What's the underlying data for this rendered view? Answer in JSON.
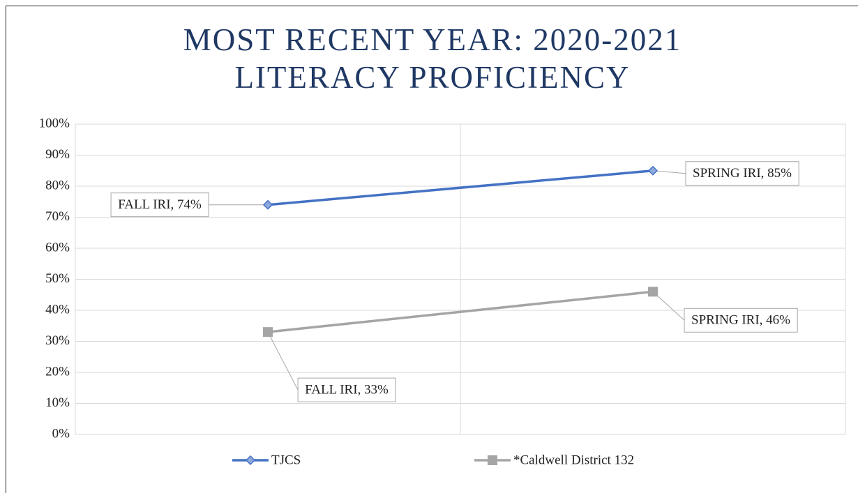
{
  "chart_data": {
    "type": "line",
    "title": "MOST RECENT YEAR: 2020-2021 LITERACY PROFICIENCY",
    "categories": [
      null,
      null
    ],
    "series": [
      {
        "name": "TJCS",
        "color": "#4472c4",
        "marker": "diamond",
        "values": [
          74,
          85
        ],
        "value_labels": [
          "FALL IRI, 74%",
          "SPRING IRI, 85%"
        ]
      },
      {
        "name": "*Caldwell District 132",
        "color": "#a5a5a5",
        "marker": "square",
        "values": [
          33,
          46
        ],
        "value_labels": [
          "FALL IRI, 33%",
          "SPRING IRI, 46%"
        ]
      }
    ],
    "ylim": [
      0,
      100
    ],
    "yticks": [
      {
        "value": 0,
        "label": "0%"
      },
      {
        "value": 10,
        "label": "10%"
      },
      {
        "value": 20,
        "label": "20%"
      },
      {
        "value": 30,
        "label": "30%"
      },
      {
        "value": 40,
        "label": "40%"
      },
      {
        "value": 50,
        "label": "50%"
      },
      {
        "value": 60,
        "label": "60%"
      },
      {
        "value": 70,
        "label": "70%"
      },
      {
        "value": 80,
        "label": "80%"
      },
      {
        "value": 90,
        "label": "90%"
      },
      {
        "value": 100,
        "label": "100%"
      }
    ],
    "grid": true,
    "legend": "bottom"
  }
}
